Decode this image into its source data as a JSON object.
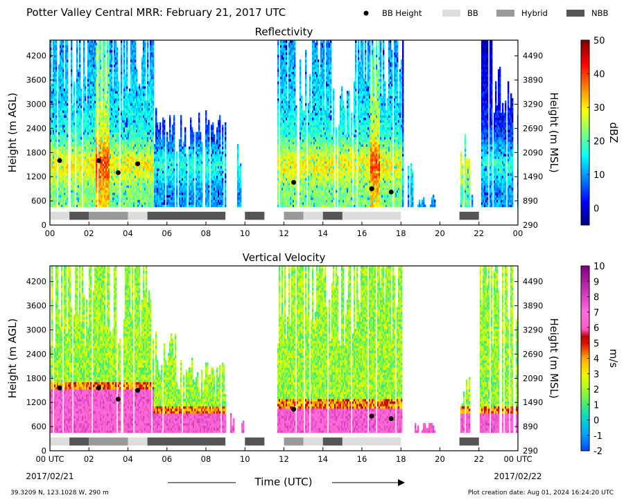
{
  "header": {
    "title": "Potter Valley Central MRR:  February 21, 2017 UTC",
    "legend": [
      {
        "label": "BB Height",
        "kind": "dot",
        "color": "#000000"
      },
      {
        "label": "BB",
        "kind": "box",
        "color": "#dddddd"
      },
      {
        "label": "Hybrid",
        "kind": "box",
        "color": "#999999"
      },
      {
        "label": "NBB",
        "kind": "box",
        "color": "#555555"
      }
    ]
  },
  "footer": {
    "location": "39.3209 N, 123.1028 W, 290 m",
    "creation": "Plot creation date: Aug 01, 2024 16:24:20 UTC",
    "xlabel": "Time (UTC)",
    "date_start": "2017/02/21",
    "date_end": "2017/02/22"
  },
  "chart_data": [
    {
      "type": "heatmap",
      "title": "Reflectivity",
      "ylabel": "Height (m AGL)",
      "ylabel2": "Height (m MSL)",
      "xlim": [
        0,
        24
      ],
      "ylim": [
        0,
        4590
      ],
      "x_ticks": [
        "00",
        "02",
        "04",
        "06",
        "08",
        "10",
        "12",
        "14",
        "16",
        "18",
        "20",
        "22",
        "00"
      ],
      "y_ticks": [
        0,
        600,
        1200,
        1800,
        2400,
        3000,
        3600,
        4200
      ],
      "y2_ticks": [
        290,
        890,
        1490,
        2090,
        2690,
        3290,
        3890,
        4490
      ],
      "colorbar": {
        "label": "dBZ",
        "min": -5,
        "max": 50,
        "ticks": [
          0,
          10,
          20,
          30,
          40,
          50
        ],
        "colormap": "jet"
      },
      "bb_height": [
        {
          "time": 0.5,
          "height": 1600
        },
        {
          "time": 2.5,
          "height": 1600
        },
        {
          "time": 3.5,
          "height": 1300
        },
        {
          "time": 4.5,
          "height": 1520
        },
        {
          "time": 12.5,
          "height": 1060
        },
        {
          "time": 16.5,
          "height": 900
        },
        {
          "time": 17.5,
          "height": 820
        }
      ],
      "classification": [
        {
          "start": 0,
          "end": 1,
          "class": "BB"
        },
        {
          "start": 1,
          "end": 2,
          "class": "NBB"
        },
        {
          "start": 2,
          "end": 4,
          "class": "Hybrid"
        },
        {
          "start": 4,
          "end": 5,
          "class": "BB"
        },
        {
          "start": 5,
          "end": 9,
          "class": "NBB"
        },
        {
          "start": 10,
          "end": 11,
          "class": "NBB"
        },
        {
          "start": 12,
          "end": 13,
          "class": "Hybrid"
        },
        {
          "start": 13,
          "end": 14,
          "class": "BB"
        },
        {
          "start": 14,
          "end": 15,
          "class": "NBB"
        },
        {
          "start": 15,
          "end": 18,
          "class": "BB"
        },
        {
          "start": 21,
          "end": 22,
          "class": "NBB"
        }
      ]
    },
    {
      "type": "heatmap",
      "title": "Vertical Velocity",
      "ylabel": "Height (m AGL)",
      "ylabel2": "Height (m MSL)",
      "xlim": [
        0,
        24
      ],
      "ylim": [
        0,
        4590
      ],
      "x_ticks": [
        "00 UTC",
        "02",
        "04",
        "06",
        "08",
        "10",
        "12",
        "14",
        "16",
        "18",
        "20",
        "22",
        "00 UTC"
      ],
      "y_ticks": [
        0,
        600,
        1200,
        1800,
        2400,
        3000,
        3600,
        4200
      ],
      "y2_ticks": [
        290,
        890,
        1490,
        2090,
        2690,
        3290,
        3890,
        4490
      ],
      "colorbar": {
        "label": "m/s",
        "min": -2,
        "max": 10,
        "ticks": [
          -2,
          -1,
          0,
          1,
          2,
          3,
          4,
          5,
          6,
          7,
          8,
          9,
          10
        ],
        "colormap": "velocity"
      },
      "bb_height": [
        {
          "time": 0.5,
          "height": 1560
        },
        {
          "time": 2.5,
          "height": 1560
        },
        {
          "time": 3.5,
          "height": 1280
        },
        {
          "time": 4.5,
          "height": 1500
        },
        {
          "time": 12.5,
          "height": 1030
        },
        {
          "time": 16.5,
          "height": 860
        },
        {
          "time": 17.5,
          "height": 800
        }
      ],
      "classification": [
        {
          "start": 0,
          "end": 1,
          "class": "BB"
        },
        {
          "start": 1,
          "end": 2,
          "class": "NBB"
        },
        {
          "start": 2,
          "end": 4,
          "class": "Hybrid"
        },
        {
          "start": 4,
          "end": 5,
          "class": "BB"
        },
        {
          "start": 5,
          "end": 9,
          "class": "NBB"
        },
        {
          "start": 10,
          "end": 11,
          "class": "NBB"
        },
        {
          "start": 12,
          "end": 13,
          "class": "Hybrid"
        },
        {
          "start": 13,
          "end": 14,
          "class": "BB"
        },
        {
          "start": 14,
          "end": 15,
          "class": "NBB"
        },
        {
          "start": 15,
          "end": 18,
          "class": "BB"
        },
        {
          "start": 21,
          "end": 22,
          "class": "NBB"
        }
      ],
      "echo_periods": [
        {
          "start": 0,
          "end": 5.25,
          "top": 4590
        },
        {
          "start": 5.25,
          "end": 6.5,
          "top": 3000
        },
        {
          "start": 6.5,
          "end": 9,
          "top": 2300
        },
        {
          "start": 9.2,
          "end": 9.4,
          "top": 1000
        },
        {
          "start": 9.8,
          "end": 9.9,
          "top": 900
        },
        {
          "start": 11.6,
          "end": 15.6,
          "top": 4590
        },
        {
          "start": 15.6,
          "end": 18,
          "top": 4590
        },
        {
          "start": 18.7,
          "end": 19.7,
          "top": 700
        },
        {
          "start": 21,
          "end": 21.5,
          "top": 1900
        },
        {
          "start": 22,
          "end": 24,
          "top": 4590
        }
      ]
    }
  ]
}
